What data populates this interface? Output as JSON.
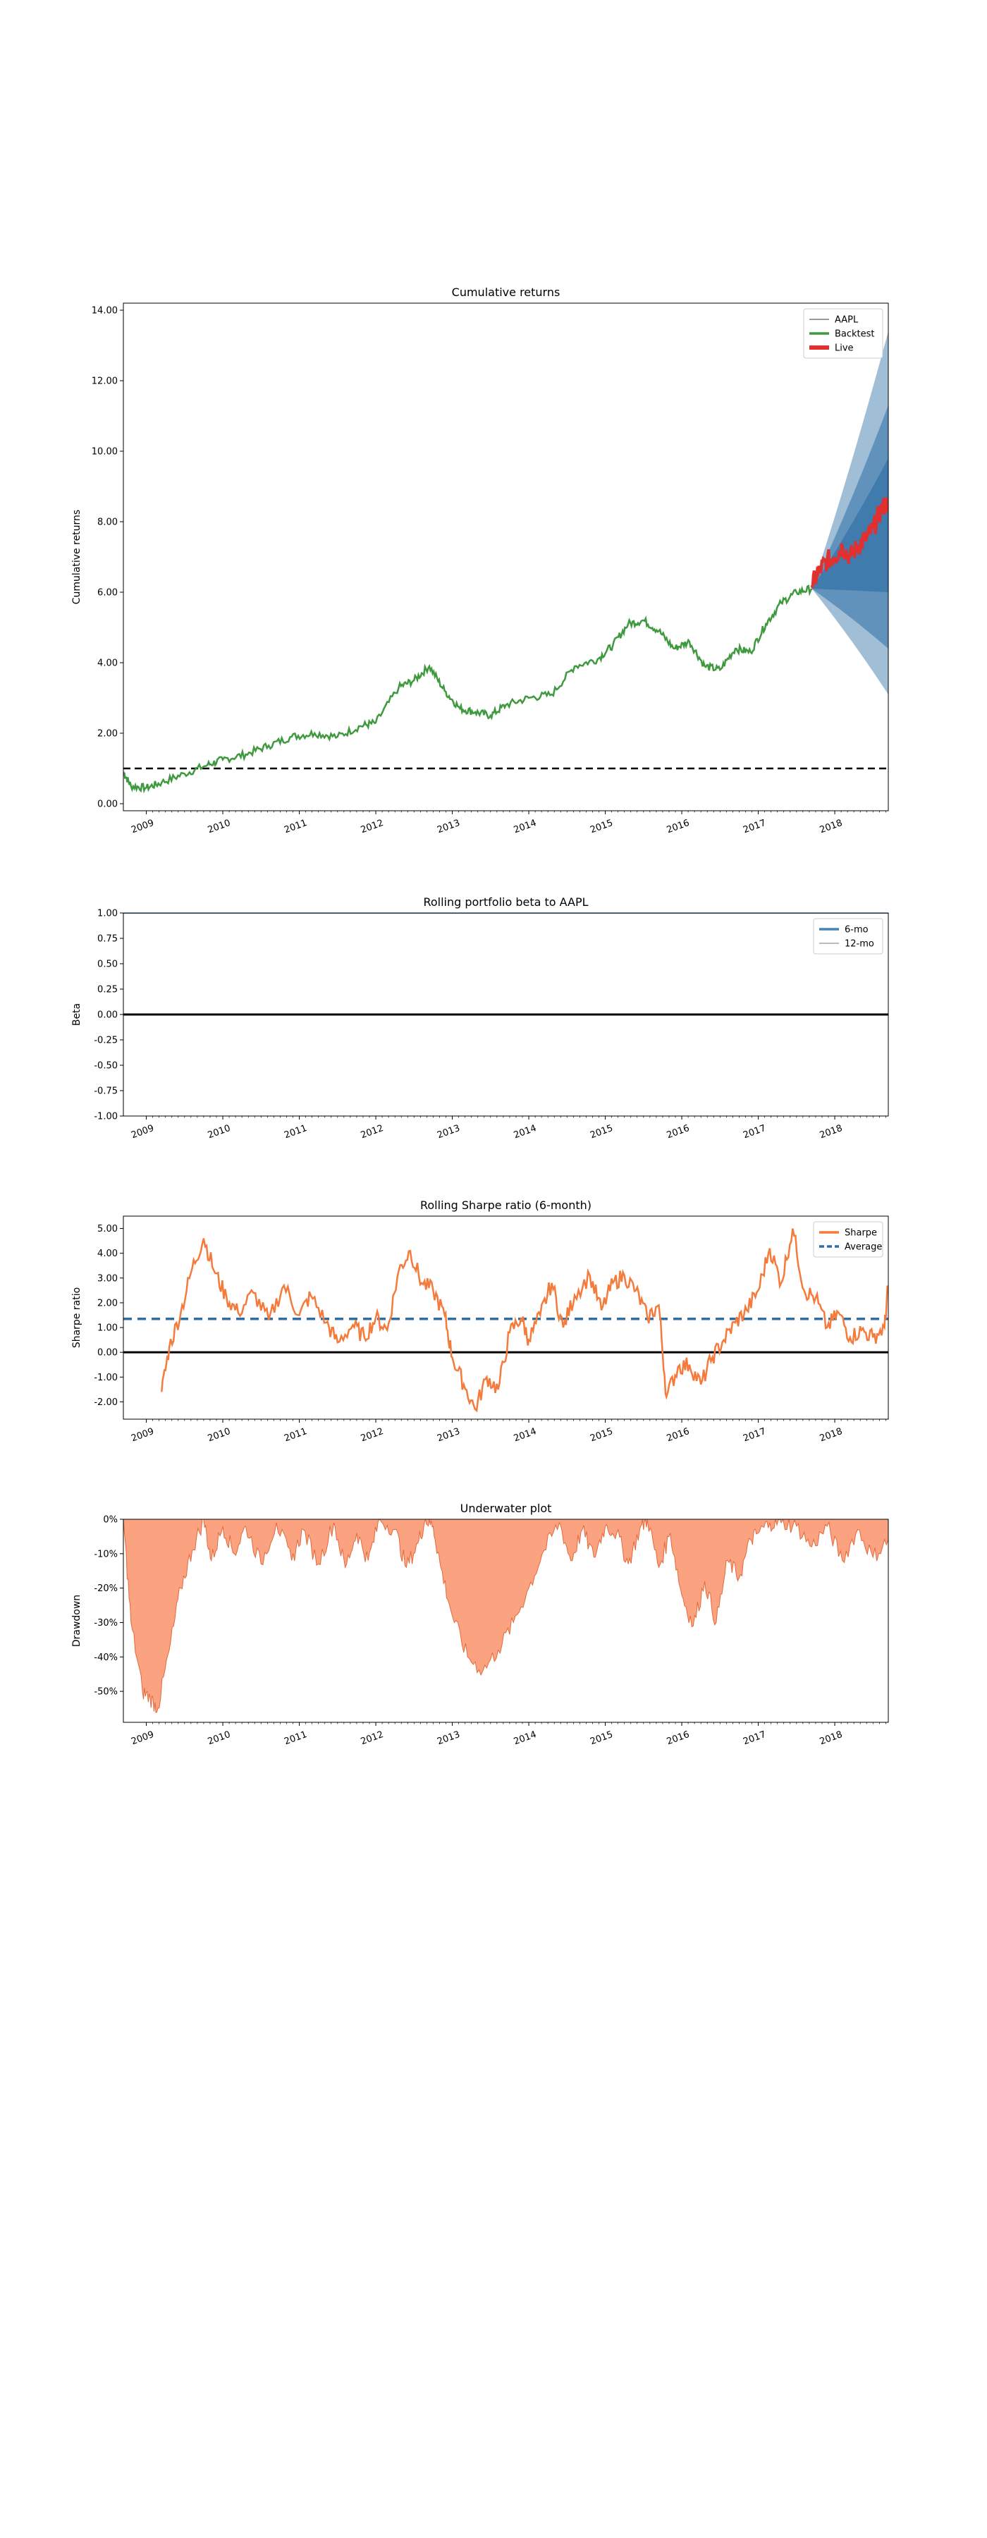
{
  "chart_data": [
    {
      "type": "area",
      "title": "Cumulative returns",
      "ylabel": "Cumulative returns",
      "xlabel": "",
      "x_range": [
        2008.7,
        2018.7
      ],
      "ylim": [
        -0.2,
        14.2
      ],
      "yticks": [
        0,
        2,
        4,
        6,
        8,
        10,
        12,
        14
      ],
      "ytick_labels": [
        "0.00",
        "2.00",
        "4.00",
        "6.00",
        "8.00",
        "10.00",
        "12.00",
        "14.00"
      ],
      "xticks": [
        2009,
        2010,
        2011,
        2012,
        2013,
        2014,
        2015,
        2016,
        2017,
        2018
      ],
      "xtick_labels": [
        "2009",
        "2010",
        "2011",
        "2012",
        "2013",
        "2014",
        "2015",
        "2016",
        "2017",
        "2018"
      ],
      "legend": [
        "AAPL",
        "Backtest",
        "Live"
      ],
      "legend_position": "top-right",
      "reference_line": 1.0,
      "colors": {
        "AAPL": "#9a9a9a",
        "Backtest": "#3f9a3f",
        "Live": "#e03030",
        "cone": "#2e6ea6"
      },
      "series": [
        {
          "name": "Backtest",
          "x": [
            2008.7,
            2008.8,
            2009.0,
            2009.2,
            2009.5,
            2009.8,
            2010.0,
            2010.3,
            2010.6,
            2010.9,
            2011.2,
            2011.5,
            2011.8,
            2012.0,
            2012.3,
            2012.5,
            2012.7,
            2012.9,
            2013.1,
            2013.3,
            2013.5,
            2013.7,
            2014.0,
            2014.3,
            2014.6,
            2014.9,
            2015.1,
            2015.3,
            2015.5,
            2015.7,
            2015.9,
            2016.1,
            2016.3,
            2016.5,
            2016.7,
            2016.9,
            2017.1,
            2017.3,
            2017.5,
            2017.7
          ],
          "values": [
            0.9,
            0.5,
            0.45,
            0.6,
            0.85,
            1.1,
            1.25,
            1.4,
            1.65,
            1.9,
            2.0,
            1.9,
            2.2,
            2.3,
            3.3,
            3.5,
            3.9,
            3.2,
            2.7,
            2.6,
            2.5,
            2.8,
            3.0,
            3.1,
            3.9,
            4.1,
            4.5,
            5.1,
            5.2,
            4.9,
            4.4,
            4.6,
            3.9,
            3.8,
            4.4,
            4.3,
            5.1,
            5.7,
            6.0,
            6.1
          ]
        },
        {
          "name": "Live",
          "x": [
            2017.7,
            2017.8,
            2017.9,
            2018.0,
            2018.1,
            2018.2,
            2018.3,
            2018.4,
            2018.5,
            2018.6,
            2018.7
          ],
          "values": [
            6.2,
            6.6,
            6.9,
            7.0,
            7.3,
            7.0,
            7.3,
            7.5,
            7.8,
            8.3,
            8.6
          ]
        }
      ],
      "cone": {
        "start_x": 2017.7,
        "end_x": 2018.7,
        "start_value": 6.1,
        "end_bounds": {
          "outer_high": 13.4,
          "mid_high": 11.3,
          "inner_high": 9.8,
          "center": 8.6,
          "inner_low": 6.0,
          "mid_low": 4.4,
          "outer_low": 3.1
        }
      }
    },
    {
      "type": "line",
      "title": "Rolling portfolio beta to AAPL",
      "ylabel": "Beta",
      "xlabel": "",
      "x_range": [
        2008.7,
        2018.7
      ],
      "ylim": [
        -1.0,
        1.0
      ],
      "yticks": [
        1.0,
        0.75,
        0.5,
        0.25,
        0.0,
        -0.25,
        -0.5,
        -0.75,
        -1.0
      ],
      "ytick_labels": [
        "1.00",
        "0.75",
        "0.50",
        "0.25",
        "0.00",
        "-0.25",
        "-0.50",
        "-0.75",
        "-1.00"
      ],
      "xticks": [
        2009,
        2010,
        2011,
        2012,
        2013,
        2014,
        2015,
        2016,
        2017,
        2018
      ],
      "xtick_labels": [
        "2009",
        "2010",
        "2011",
        "2012",
        "2013",
        "2014",
        "2015",
        "2016",
        "2017",
        "2018"
      ],
      "legend": [
        "6-mo",
        "12-mo"
      ],
      "legend_position": "top-right",
      "reference_line": 0.0,
      "colors": {
        "6-mo": "#4a82b4",
        "12-mo": "#bbbbbb"
      },
      "series": [
        {
          "name": "6-mo",
          "x": [
            2008.7,
            2018.7
          ],
          "values": [
            1.0,
            1.0
          ]
        },
        {
          "name": "12-mo",
          "x": [
            2008.7,
            2018.7
          ],
          "values": [
            1.0,
            1.0
          ]
        }
      ]
    },
    {
      "type": "line",
      "title": "Rolling Sharpe ratio (6-month)",
      "ylabel": "Sharpe ratio",
      "xlabel": "",
      "x_range": [
        2008.7,
        2018.7
      ],
      "ylim": [
        -2.7,
        5.5
      ],
      "yticks": [
        5,
        4,
        3,
        2,
        1,
        0,
        -1,
        -2
      ],
      "ytick_labels": [
        "5.00",
        "4.00",
        "3.00",
        "2.00",
        "1.00",
        "0.00",
        "-1.00",
        "-2.00"
      ],
      "xticks": [
        2009,
        2010,
        2011,
        2012,
        2013,
        2014,
        2015,
        2016,
        2017,
        2018
      ],
      "xtick_labels": [
        "2009",
        "2010",
        "2011",
        "2012",
        "2013",
        "2014",
        "2015",
        "2016",
        "2017",
        "2018"
      ],
      "legend": [
        "Sharpe",
        "Average"
      ],
      "legend_position": "top-right",
      "reference_line": 0.0,
      "average": 1.35,
      "colors": {
        "Sharpe": "#f47b3c",
        "Average": "#2e6ea6"
      },
      "series": [
        {
          "name": "Sharpe",
          "x": [
            2009.2,
            2009.3,
            2009.45,
            2009.6,
            2009.75,
            2009.9,
            2010.05,
            2010.2,
            2010.4,
            2010.6,
            2010.8,
            2011.0,
            2011.15,
            2011.35,
            2011.5,
            2011.7,
            2011.85,
            2012.0,
            2012.15,
            2012.3,
            2012.45,
            2012.6,
            2012.75,
            2012.9,
            2013.0,
            2013.15,
            2013.3,
            2013.45,
            2013.6,
            2013.75,
            2013.9,
            2014.0,
            2014.15,
            2014.3,
            2014.45,
            2014.6,
            2014.8,
            2014.95,
            2015.1,
            2015.25,
            2015.4,
            2015.55,
            2015.7,
            2015.8,
            2015.95,
            2016.1,
            2016.25,
            2016.4,
            2016.55,
            2016.7,
            2016.85,
            2017.0,
            2017.15,
            2017.3,
            2017.45,
            2017.6,
            2017.75,
            2017.9,
            2018.05,
            2018.2,
            2018.35,
            2018.5,
            2018.65,
            2018.7
          ],
          "values": [
            -1.6,
            0.2,
            1.6,
            3.4,
            4.6,
            3.2,
            2.2,
            1.6,
            2.4,
            1.3,
            2.7,
            1.5,
            2.3,
            1.2,
            0.4,
            1.1,
            0.6,
            1.4,
            0.9,
            3.3,
            4.1,
            2.8,
            2.5,
            1.5,
            -0.2,
            -1.3,
            -2.3,
            -1.0,
            -1.5,
            0.8,
            1.4,
            0.5,
            1.5,
            2.8,
            1.0,
            2.3,
            3.1,
            1.7,
            2.8,
            3.1,
            2.5,
            1.4,
            1.9,
            -1.8,
            -0.6,
            -0.5,
            -1.3,
            -0.2,
            0.5,
            1.2,
            1.7,
            2.5,
            4.2,
            2.8,
            5.0,
            2.5,
            2.2,
            1.0,
            1.6,
            0.6,
            0.9,
            0.6,
            1.0,
            2.7
          ]
        }
      ]
    },
    {
      "type": "area",
      "title": "Underwater plot",
      "ylabel": "Drawdown",
      "xlabel": "",
      "x_range": [
        2008.7,
        2018.7
      ],
      "ylim": [
        -59,
        0
      ],
      "yticks": [
        0,
        -10,
        -20,
        -30,
        -40,
        -50
      ],
      "ytick_labels": [
        "0%",
        "-10%",
        "-20%",
        "-30%",
        "-40%",
        "-50%"
      ],
      "xticks": [
        2009,
        2010,
        2011,
        2012,
        2013,
        2014,
        2015,
        2016,
        2017,
        2018
      ],
      "xtick_labels": [
        "2009",
        "2010",
        "2011",
        "2012",
        "2013",
        "2014",
        "2015",
        "2016",
        "2017",
        "2018"
      ],
      "colors": {
        "fill": "#fba381",
        "line": "#e4683a"
      },
      "series": [
        {
          "name": "",
          "x": [
            2008.7,
            2008.8,
            2008.95,
            2009.05,
            2009.15,
            2009.3,
            2009.45,
            2009.6,
            2009.75,
            2009.85,
            2010.0,
            2010.15,
            2010.3,
            2010.5,
            2010.7,
            2010.9,
            2011.05,
            2011.25,
            2011.45,
            2011.6,
            2011.75,
            2011.9,
            2012.05,
            2012.25,
            2012.4,
            2012.55,
            2012.65,
            2012.75,
            2012.85,
            2013.0,
            2013.2,
            2013.4,
            2013.6,
            2013.8,
            2014.0,
            2014.2,
            2014.4,
            2014.55,
            2014.7,
            2014.85,
            2015.0,
            2015.15,
            2015.3,
            2015.45,
            2015.55,
            2015.7,
            2015.85,
            2016.0,
            2016.15,
            2016.3,
            2016.45,
            2016.6,
            2016.75,
            2016.9,
            2017.0,
            2017.15,
            2017.3,
            2017.5,
            2017.7,
            2017.9,
            2018.1,
            2018.3,
            2018.5,
            2018.7
          ],
          "values": [
            0,
            -30,
            -50,
            -52,
            -55,
            -38,
            -20,
            -9,
            0,
            -12,
            -2,
            -10,
            -2,
            -13,
            -1,
            -12,
            -3,
            -13,
            -1,
            -14,
            -4,
            -12,
            0,
            -3,
            -14,
            -7,
            0,
            -2,
            -14,
            -28,
            -40,
            -44,
            -38,
            -30,
            -20,
            -9,
            -1,
            -12,
            -3,
            -11,
            -2,
            -4,
            -13,
            -3,
            0,
            -14,
            -4,
            -22,
            -31,
            -18,
            -30,
            -12,
            -17,
            -6,
            -4,
            -1,
            -1,
            -2,
            -8,
            -2,
            -12,
            -3,
            -11,
            -6
          ]
        }
      ]
    }
  ]
}
